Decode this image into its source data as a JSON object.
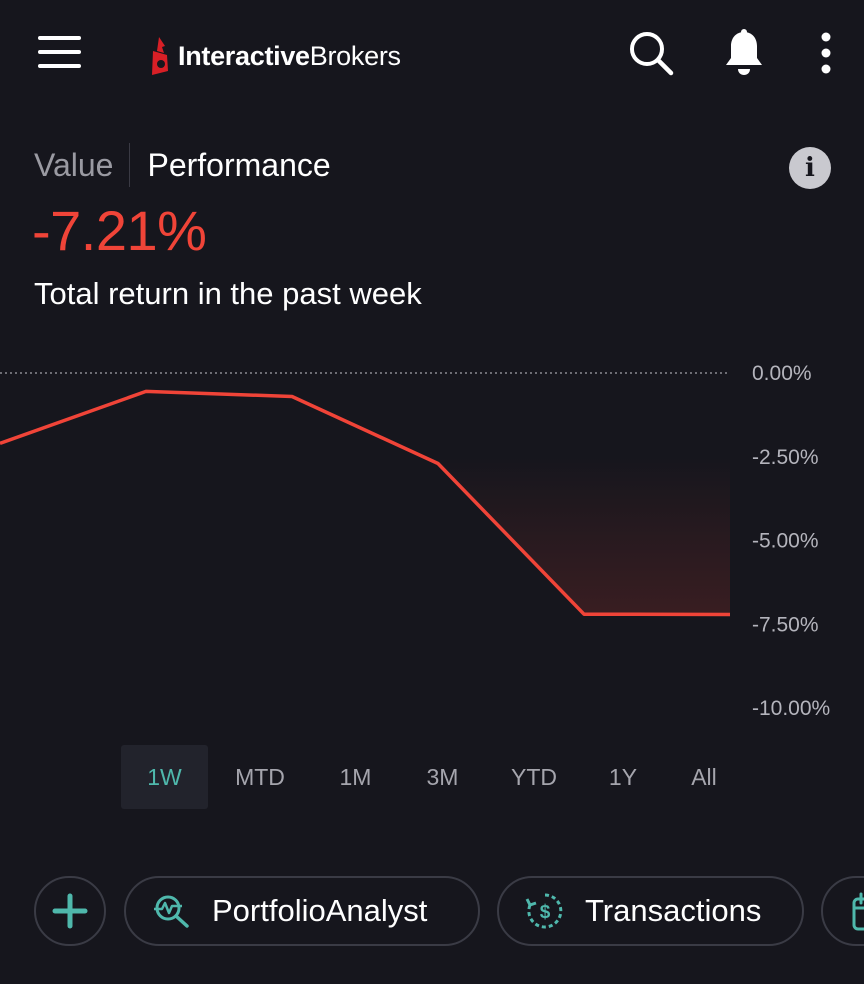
{
  "header": {
    "logo_bold": "Interactive",
    "logo_light": "Brokers",
    "icons": [
      "menu-icon",
      "search-icon",
      "bell-icon",
      "more-vertical-icon"
    ]
  },
  "toggle": {
    "value_label": "Value",
    "performance_label": "Performance",
    "selected": "Performance"
  },
  "summary": {
    "return_value": "-7.21%",
    "caption": "Total return in the past week"
  },
  "chart_data": {
    "type": "line",
    "x": [
      0,
      1,
      2,
      3,
      4,
      5
    ],
    "values": [
      -2.1,
      -0.55,
      -0.7,
      -2.7,
      -7.2,
      -7.21
    ],
    "ylim": [
      -10,
      0
    ],
    "y_ticks": [
      "0.00%",
      "-2.50%",
      "-5.00%",
      "-7.50%",
      "-10.00%"
    ],
    "y_tick_values": [
      0,
      -2.5,
      -5,
      -7.5,
      -10
    ],
    "baseline": 0,
    "line_color": "#f04438",
    "grid": false
  },
  "ranges": {
    "items": [
      "1W",
      "MTD",
      "1M",
      "3M",
      "YTD",
      "1Y",
      "All"
    ],
    "selected": "1W"
  },
  "actions": {
    "portfolio_analyst": "PortfolioAnalyst",
    "transactions": "Transactions",
    "icons": [
      "plus-icon",
      "portfolio-analyst-icon",
      "transactions-icon",
      "calendar-icon"
    ]
  },
  "colors": {
    "background": "#16161d",
    "negative": "#f04438",
    "accent": "#4fb8ac"
  }
}
